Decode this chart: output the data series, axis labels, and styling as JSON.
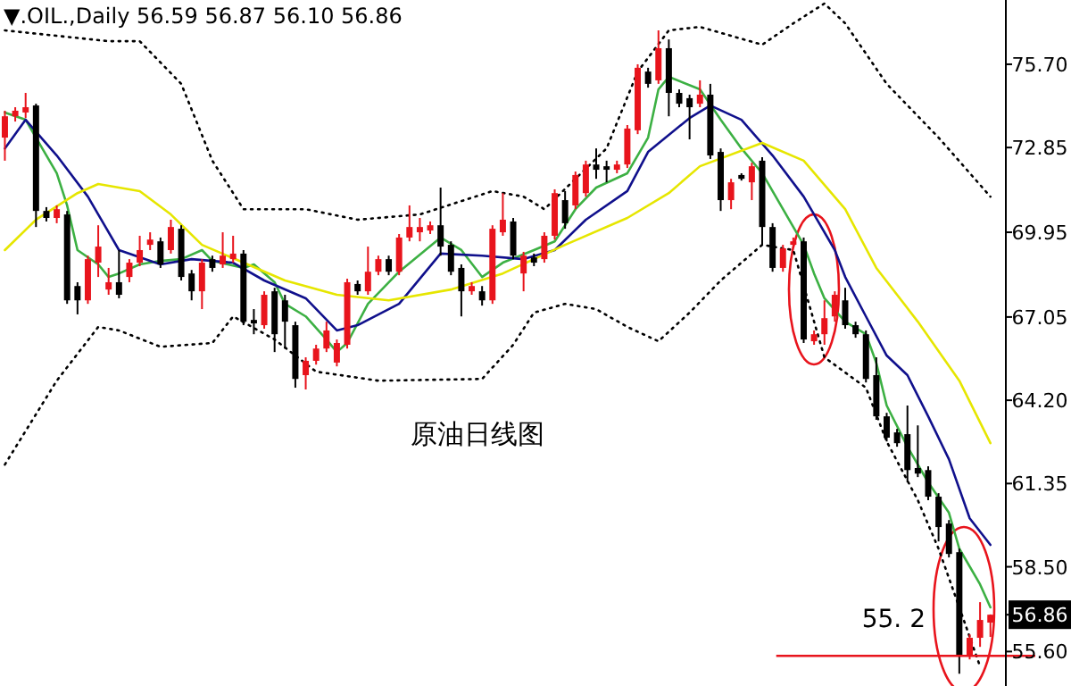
{
  "chart_data": {
    "type": "candlestick",
    "title": "▼.OIL.,Daily 56.59 56.87 56.10 56.86",
    "categories": [
      null,
      null,
      null,
      null,
      null,
      null,
      null,
      null,
      null,
      null,
      null,
      null,
      null,
      null,
      null,
      null,
      null,
      null,
      null,
      null,
      null,
      null,
      null,
      null,
      null,
      null,
      null,
      null,
      null,
      null,
      null,
      null,
      null,
      null,
      null,
      null,
      null,
      null,
      null,
      null,
      null,
      null,
      null,
      null,
      null,
      null,
      null,
      null,
      null,
      null,
      null,
      null,
      null,
      null,
      null,
      null,
      null,
      null,
      null,
      null,
      null,
      null,
      null,
      null,
      null,
      null,
      null,
      null,
      null,
      null,
      null,
      null,
      null,
      null,
      null,
      null,
      null,
      null,
      null,
      null,
      null,
      null,
      null,
      null,
      null,
      null,
      null,
      null,
      null,
      null,
      null,
      null,
      null,
      null,
      null,
      null
    ],
    "ohlc": [
      [
        73.19,
        74.11,
        72.4,
        73.92
      ],
      [
        73.92,
        74.23,
        73.74,
        74.11
      ],
      [
        74.05,
        74.72,
        73.86,
        74.23
      ],
      [
        74.29,
        74.35,
        70.13,
        70.68
      ],
      [
        70.68,
        70.81,
        70.32,
        70.44
      ],
      [
        70.44,
        70.87,
        70.26,
        70.74
      ],
      [
        70.56,
        70.68,
        67.5,
        67.62
      ],
      [
        68.11,
        68.24,
        67.14,
        67.62
      ],
      [
        67.62,
        69.15,
        67.5,
        69.03
      ],
      [
        68.91,
        70.19,
        68.42,
        69.46
      ],
      [
        67.99,
        68.73,
        67.81,
        68.24
      ],
      [
        68.24,
        69.34,
        67.69,
        67.81
      ],
      [
        68.42,
        69.03,
        68.24,
        68.91
      ],
      [
        68.91,
        69.83,
        68.79,
        69.34
      ],
      [
        69.52,
        69.95,
        69.34,
        69.7
      ],
      [
        69.64,
        69.77,
        68.73,
        68.85
      ],
      [
        69.34,
        70.38,
        69.22,
        70.13
      ],
      [
        70.07,
        70.19,
        68.3,
        68.42
      ],
      [
        68.54,
        68.66,
        67.62,
        67.93
      ],
      [
        67.93,
        69.03,
        67.32,
        68.91
      ],
      [
        69.03,
        69.15,
        68.6,
        68.73
      ],
      [
        68.85,
        69.95,
        68.73,
        69.15
      ],
      [
        69.03,
        69.83,
        68.91,
        69.22
      ],
      [
        69.22,
        69.34,
        66.77,
        66.89
      ],
      [
        66.95,
        67.32,
        66.46,
        66.83
      ],
      [
        66.77,
        67.93,
        66.65,
        67.81
      ],
      [
        67.93,
        68.05,
        65.85,
        66.46
      ],
      [
        67.62,
        67.81,
        65.97,
        66.89
      ],
      [
        66.77,
        66.89,
        64.63,
        64.93
      ],
      [
        65.06,
        65.67,
        64.57,
        65.55
      ],
      [
        65.55,
        66.1,
        65.42,
        65.97
      ],
      [
        65.97,
        66.89,
        65.85,
        66.59
      ],
      [
        65.49,
        66.28,
        65.36,
        66.16
      ],
      [
        66.1,
        68.36,
        65.97,
        68.24
      ],
      [
        68.18,
        68.3,
        67.81,
        67.93
      ],
      [
        67.93,
        69.46,
        67.81,
        68.6
      ],
      [
        68.6,
        69.15,
        68.48,
        69.03
      ],
      [
        69.03,
        69.15,
        68.48,
        68.6
      ],
      [
        68.6,
        69.89,
        68.48,
        69.77
      ],
      [
        69.77,
        70.87,
        69.64,
        70.13
      ],
      [
        69.95,
        70.44,
        69.64,
        70.13
      ],
      [
        70.01,
        70.32,
        69.89,
        70.19
      ],
      [
        70.19,
        71.48,
        69.15,
        69.46
      ],
      [
        69.52,
        69.64,
        68.48,
        68.6
      ],
      [
        68.73,
        68.85,
        67.07,
        67.93
      ],
      [
        67.93,
        68.24,
        67.81,
        68.11
      ],
      [
        67.93,
        68.11,
        67.44,
        67.62
      ],
      [
        67.62,
        70.19,
        67.5,
        70.07
      ],
      [
        69.95,
        71.29,
        69.83,
        70.38
      ],
      [
        70.32,
        70.44,
        69.03,
        69.15
      ],
      [
        68.54,
        69.28,
        67.93,
        69.15
      ],
      [
        69.09,
        69.22,
        68.79,
        68.91
      ],
      [
        69.03,
        69.95,
        68.91,
        69.83
      ],
      [
        69.83,
        71.42,
        69.7,
        71.29
      ],
      [
        71.05,
        71.36,
        70.07,
        70.26
      ],
      [
        70.87,
        72.03,
        70.74,
        71.91
      ],
      [
        71.29,
        72.4,
        71.17,
        72.27
      ],
      [
        72.27,
        72.82,
        71.78,
        72.09
      ],
      [
        72.21,
        72.4,
        71.66,
        72.09
      ],
      [
        72.09,
        72.4,
        71.97,
        72.27
      ],
      [
        72.27,
        73.62,
        72.15,
        73.5
      ],
      [
        73.44,
        75.7,
        73.31,
        75.58
      ],
      [
        75.45,
        75.58,
        74.9,
        75.03
      ],
      [
        75.15,
        76.86,
        75.03,
        76.25
      ],
      [
        76.25,
        76.55,
        73.92,
        74.72
      ],
      [
        74.72,
        74.84,
        74.23,
        74.35
      ],
      [
        74.54,
        74.66,
        73.13,
        74.23
      ],
      [
        74.35,
        75.15,
        74.23,
        74.66
      ],
      [
        74.66,
        75.03,
        72.46,
        72.58
      ],
      [
        72.7,
        72.82,
        70.68,
        71.05
      ],
      [
        71.05,
        71.78,
        70.74,
        71.66
      ],
      [
        71.91,
        71.97,
        71.72,
        71.78
      ],
      [
        71.66,
        72.33,
        71.05,
        72.21
      ],
      [
        72.4,
        72.52,
        69.52,
        70.13
      ],
      [
        70.13,
        70.26,
        68.6,
        68.73
      ],
      [
        68.73,
        69.52,
        68.6,
        69.4
      ],
      [
        69.52,
        69.77,
        69.4,
        69.64
      ],
      [
        69.64,
        69.77,
        66.16,
        66.28
      ],
      [
        66.22,
        66.59,
        66.1,
        66.46
      ],
      [
        66.46,
        67.62,
        66.1,
        67.01
      ],
      [
        67.07,
        67.93,
        66.89,
        67.81
      ],
      [
        67.62,
        68.05,
        66.65,
        66.77
      ],
      [
        66.77,
        66.89,
        66.34,
        66.46
      ],
      [
        66.46,
        66.59,
        64.81,
        64.93
      ],
      [
        65.06,
        65.67,
        63.53,
        63.65
      ],
      [
        63.65,
        63.77,
        62.79,
        62.92
      ],
      [
        63.1,
        63.22,
        62.61,
        62.73
      ],
      [
        63.04,
        64.02,
        61.39,
        61.81
      ],
      [
        61.88,
        63.34,
        61.57,
        61.69
      ],
      [
        61.81,
        61.94,
        60.78,
        60.9
      ],
      [
        60.9,
        61.02,
        59.37,
        59.86
      ],
      [
        59.98,
        60.1,
        58.82,
        58.94
      ],
      [
        59.0,
        59.12,
        54.84,
        55.45
      ],
      [
        55.45,
        56.19,
        55.33,
        56.07
      ],
      [
        56.07,
        57.29,
        55.76,
        56.68
      ],
      [
        56.59,
        56.87,
        56.1,
        56.86
      ]
    ],
    "colors": [
      "#e8141c",
      "#e8141c",
      "#e8141c",
      "#000000",
      "#000000",
      "#e8141c",
      "#000000",
      "#000000",
      "#e8141c",
      "#e8141c",
      "#e8141c",
      "#000000",
      "#e8141c",
      "#e8141c",
      "#e8141c",
      "#000000",
      "#e8141c",
      "#000000",
      "#000000",
      "#e8141c",
      "#000000",
      "#e8141c",
      "#e8141c",
      "#000000",
      "#000000",
      "#e8141c",
      "#000000",
      "#000000",
      "#000000",
      "#e8141c",
      "#e8141c",
      "#e8141c",
      "#e8141c",
      "#e8141c",
      "#000000",
      "#e8141c",
      "#e8141c",
      "#000000",
      "#e8141c",
      "#e8141c",
      "#e8141c",
      "#e8141c",
      "#000000",
      "#000000",
      "#000000",
      "#e8141c",
      "#000000",
      "#e8141c",
      "#e8141c",
      "#000000",
      "#e8141c",
      "#000000",
      "#e8141c",
      "#e8141c",
      "#000000",
      "#e8141c",
      "#e8141c",
      "#000000",
      "#000000",
      "#e8141c",
      "#e8141c",
      "#e8141c",
      "#000000",
      "#e8141c",
      "#000000",
      "#000000",
      "#000000",
      "#e8141c",
      "#000000",
      "#000000",
      "#e8141c",
      "#000000",
      "#e8141c",
      "#000000",
      "#000000",
      "#e8141c",
      "#e8141c",
      "#000000",
      "#e8141c",
      "#e8141c",
      "#e8141c",
      "#000000",
      "#000000",
      "#000000",
      "#000000",
      "#000000",
      "#000000",
      "#000000",
      "#000000",
      "#000000",
      "#000000",
      "#000000",
      "#000000",
      "#e8141c",
      "#e8141c",
      "#e8141c"
    ],
    "series": [
      {
        "type": "line",
        "color": "#3cb043",
        "line_style": "solid",
        "values": [
          74.05,
          null,
          73.8,
          73.19,
          null,
          71.97,
          70.87,
          69.34,
          null,
          68.85,
          68.42,
          68.54,
          null,
          68.85,
          null,
          68.97,
          null,
          69.03,
          null,
          69.34,
          68.97,
          null,
          null,
          68.73,
          68.85,
          null,
          68.24,
          67.5,
          null,
          67.07,
          null,
          66.28,
          65.85,
          66.16,
          null,
          67.5,
          null,
          null,
          68.6,
          null,
          null,
          null,
          69.77,
          null,
          69.34,
          null,
          68.42,
          null,
          68.91,
          null,
          null,
          69.34,
          null,
          69.64,
          null,
          70.74,
          null,
          71.48,
          null,
          null,
          71.97,
          null,
          73.19,
          74.84,
          75.27,
          null,
          null,
          74.84,
          null,
          73.8,
          null,
          72.82,
          null,
          71.97,
          null,
          null,
          70.13,
          69.52,
          68.54,
          67.69,
          null,
          66.89,
          null,
          66.46,
          65.48,
          64.02,
          null,
          62.61,
          null,
          61.39,
          null,
          60.35,
          59.12,
          null,
          57.9,
          57.11
        ]
      },
      {
        "type": "line",
        "color": "#10108c",
        "line_style": "solid",
        "values": [
          72.82,
          null,
          73.8,
          null,
          null,
          72.58,
          null,
          null,
          71.17,
          null,
          null,
          69.34,
          null,
          null,
          null,
          68.85,
          null,
          null,
          69.03,
          null,
          null,
          null,
          68.91,
          null,
          null,
          68.3,
          null,
          null,
          null,
          67.69,
          null,
          null,
          66.59,
          null,
          66.77,
          null,
          null,
          null,
          67.5,
          null,
          null,
          null,
          69.22,
          null,
          null,
          null,
          69.15,
          null,
          null,
          null,
          69.03,
          null,
          null,
          69.34,
          null,
          null,
          70.38,
          null,
          null,
          null,
          71.36,
          null,
          72.7,
          null,
          null,
          null,
          73.86,
          null,
          74.29,
          null,
          null,
          73.8,
          null,
          null,
          72.58,
          null,
          null,
          71.17,
          null,
          null,
          69.34,
          68.42,
          null,
          67.07,
          null,
          65.73,
          null,
          65.06,
          null,
          63.65,
          null,
          62.18,
          null,
          60.16,
          null,
          59.25
        ]
      },
      {
        "type": "line",
        "color": "#e6e600",
        "line_style": "solid",
        "values": [
          69.34,
          null,
          null,
          70.38,
          null,
          null,
          null,
          71.29,
          null,
          71.6,
          null,
          null,
          null,
          71.36,
          null,
          null,
          70.56,
          null,
          null,
          69.52,
          null,
          null,
          null,
          68.91,
          null,
          null,
          null,
          68.3,
          null,
          null,
          null,
          null,
          67.81,
          null,
          null,
          null,
          null,
          67.62,
          null,
          null,
          null,
          null,
          null,
          67.99,
          null,
          null,
          null,
          null,
          68.54,
          null,
          null,
          null,
          null,
          null,
          69.52,
          null,
          null,
          null,
          null,
          null,
          70.44,
          null,
          null,
          null,
          71.29,
          null,
          null,
          72.21,
          null,
          null,
          null,
          null,
          null,
          73.01,
          null,
          null,
          null,
          72.4,
          null,
          null,
          null,
          70.74,
          null,
          null,
          68.73,
          null,
          null,
          null,
          66.89,
          null,
          null,
          null,
          64.87,
          null,
          null,
          62.73
        ]
      },
      {
        "type": "line",
        "color": "#000000",
        "line_style": "dotted",
        "values": [
          76.86,
          null,
          null,
          null,
          null,
          null,
          null,
          null,
          null,
          null,
          76.49,
          null,
          null,
          76.49,
          null,
          null,
          null,
          75.03,
          null,
          null,
          72.4,
          null,
          null,
          70.74,
          null,
          null,
          null,
          null,
          null,
          70.74,
          null,
          null,
          null,
          null,
          70.38,
          null,
          null,
          null,
          null,
          null,
          70.56,
          null,
          null,
          null,
          null,
          null,
          null,
          71.36,
          null,
          null,
          71.17,
          null,
          70.74,
          null,
          null,
          71.78,
          null,
          null,
          72.82,
          null,
          null,
          75.45,
          null,
          null,
          76.86,
          null,
          null,
          76.98,
          null,
          null,
          null,
          null,
          null,
          76.37,
          null,
          null,
          77.1,
          null,
          null,
          77.78,
          null,
          77.1,
          null,
          null,
          null,
          75.03,
          null,
          null,
          null,
          null,
          73.19,
          null,
          null,
          null,
          null,
          71.17
        ]
      },
      {
        "type": "line",
        "color": "#000000",
        "line_style": "dotted",
        "values": [
          62.0,
          null,
          null,
          null,
          null,
          64.87,
          null,
          null,
          null,
          66.71,
          null,
          66.59,
          null,
          null,
          null,
          66.03,
          null,
          null,
          null,
          null,
          66.16,
          null,
          67.07,
          null,
          null,
          null,
          66.28,
          null,
          null,
          null,
          65.18,
          null,
          null,
          null,
          null,
          null,
          64.87,
          null,
          null,
          null,
          null,
          null,
          null,
          null,
          null,
          null,
          64.93,
          null,
          null,
          66.1,
          null,
          67.2,
          null,
          null,
          67.5,
          null,
          null,
          67.32,
          null,
          null,
          66.71,
          null,
          null,
          66.22,
          null,
          null,
          67.2,
          null,
          null,
          68.3,
          null,
          null,
          null,
          69.52,
          null,
          null,
          69.34,
          null,
          null,
          65.67,
          null,
          null,
          null,
          64.63,
          null,
          62.79,
          null,
          null,
          60.78,
          null,
          59.12,
          null,
          57.11,
          null,
          55.09,
          null
        ]
      }
    ],
    "ylim": [
      54.42,
      77.9
    ],
    "yticks": [
      {
        "value": 75.7,
        "label": "75.70"
      },
      72.85,
      69.95,
      67.05,
      {
        "value": 64.2,
        "label": "64.20"
      },
      61.35,
      {
        "value": 58.5,
        "label": "58.50"
      },
      56.86,
      {
        "value": 55.6,
        "label": "55.60"
      }
    ],
    "tick_labels": "y",
    "ref_lines": [
      {
        "axis": "y",
        "value": 55.45,
        "label": "55. 2",
        "color": "#e8141c"
      }
    ],
    "annotations": [
      "原油日线图"
    ]
  }
}
